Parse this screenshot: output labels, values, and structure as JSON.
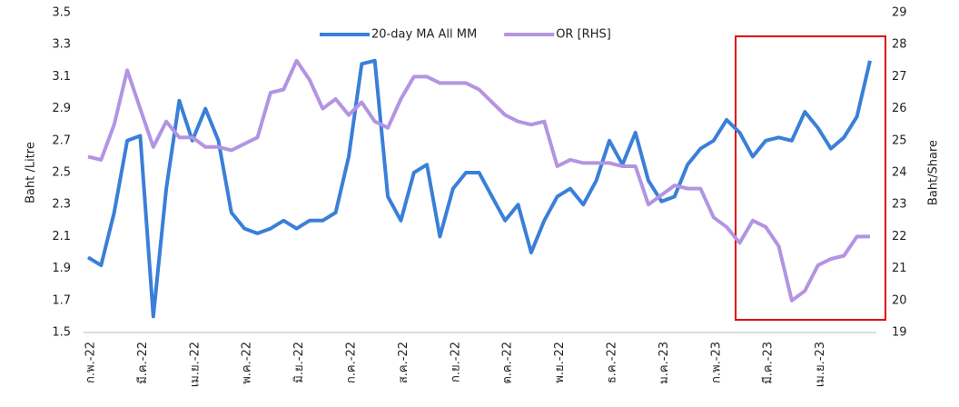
{
  "chart_data": {
    "type": "line",
    "legend": "top",
    "y_label": "Baht /Litre",
    "y2_label": "Baht/Share",
    "categories": [
      "ก.พ.-22",
      null,
      null,
      null,
      "มี.ค.-22",
      null,
      null,
      null,
      "เม.ย.-22",
      null,
      null,
      null,
      "พ.ค.-22",
      null,
      null,
      null,
      "มิ.ย.-22",
      null,
      null,
      null,
      "ก.ค.-22",
      null,
      null,
      null,
      "ส.ค.-22",
      null,
      null,
      null,
      "ก.ย.-22",
      null,
      null,
      null,
      "ต.ค.-22",
      null,
      null,
      null,
      "พ.ย.-22",
      null,
      null,
      null,
      "ธ.ค.-22",
      null,
      null,
      null,
      "ม.ค.-23",
      null,
      null,
      null,
      "ก.พ.-23",
      null,
      null,
      null,
      "มี.ค.-23",
      null,
      null,
      null,
      "เม.ย.-23",
      null,
      null,
      null,
      null
    ],
    "series": [
      {
        "name": "20-day MA All MM",
        "color": "#3a7fd8",
        "axis": "y",
        "values": [
          1.97,
          1.92,
          2.25,
          2.7,
          2.73,
          1.6,
          2.4,
          2.95,
          2.7,
          2.9,
          2.7,
          2.25,
          2.15,
          2.12,
          2.15,
          2.2,
          2.15,
          2.2,
          2.2,
          2.25,
          2.6,
          3.18,
          3.2,
          2.35,
          2.2,
          2.5,
          2.55,
          2.1,
          2.4,
          2.5,
          2.5,
          2.35,
          2.2,
          2.3,
          2.0,
          2.2,
          2.35,
          2.4,
          2.3,
          2.45,
          2.7,
          2.55,
          2.75,
          2.45,
          2.32,
          2.35,
          2.55,
          2.65,
          2.7,
          2.83,
          2.75,
          2.6,
          2.7,
          2.72,
          2.7,
          2.88,
          2.78,
          2.65,
          2.72,
          2.85,
          3.2
        ]
      },
      {
        "name": "OR [RHS]",
        "color": "#b394e3",
        "axis": "y2",
        "values": [
          24.5,
          24.4,
          25.5,
          27.2,
          26.0,
          24.8,
          25.6,
          25.1,
          25.1,
          24.8,
          24.8,
          24.7,
          24.9,
          25.1,
          26.5,
          26.6,
          27.5,
          26.9,
          26.0,
          26.3,
          25.8,
          26.2,
          25.6,
          25.4,
          26.3,
          27.0,
          27.0,
          26.8,
          26.8,
          26.8,
          26.6,
          26.2,
          25.8,
          25.6,
          25.5,
          25.6,
          24.2,
          24.4,
          24.3,
          24.3,
          24.3,
          24.2,
          24.2,
          23.0,
          23.3,
          23.6,
          23.5,
          23.5,
          22.6,
          22.3,
          21.8,
          22.5,
          22.3,
          21.7,
          20.0,
          20.3,
          21.1,
          21.3,
          21.4,
          22.0,
          22.0
        ]
      }
    ],
    "ylim": [
      1.5,
      3.5
    ],
    "yticks": [
      1.5,
      1.7,
      1.9,
      2.1,
      2.3,
      2.5,
      2.7,
      2.9,
      3.1,
      3.3,
      3.5
    ],
    "y2lim": [
      19,
      29
    ],
    "y2ticks": [
      19,
      20,
      21,
      22,
      23,
      24,
      25,
      26,
      27,
      28,
      29
    ],
    "grid": false
  }
}
